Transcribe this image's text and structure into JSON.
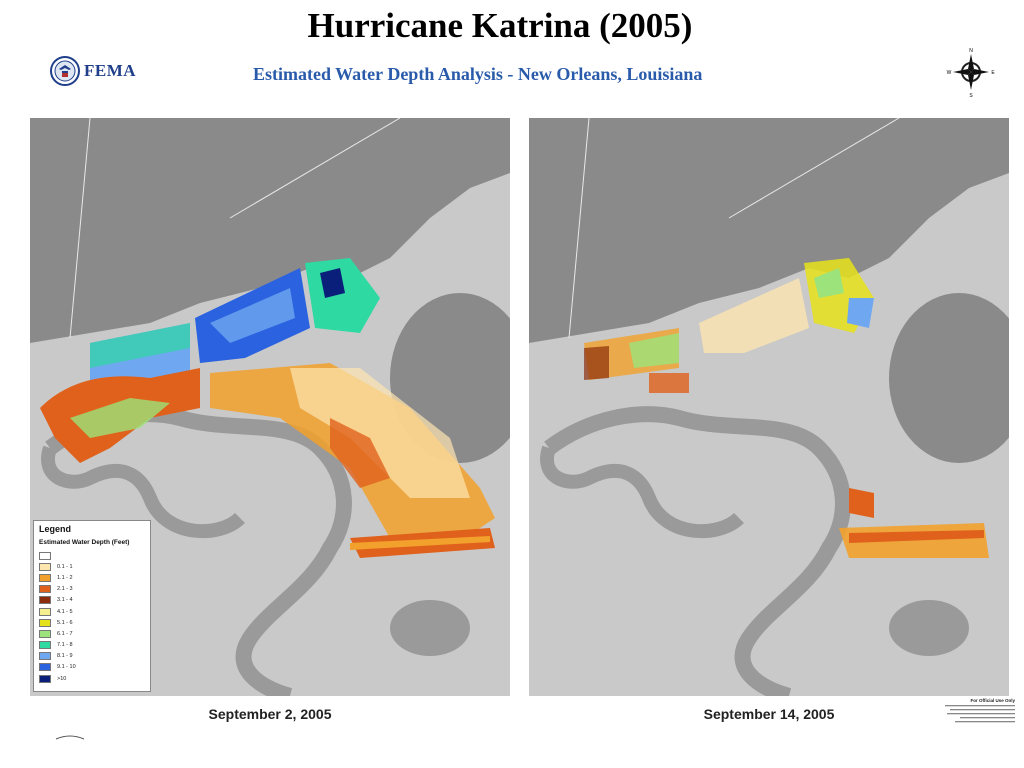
{
  "slide": {
    "title": "Hurricane Katrina (2005)"
  },
  "header": {
    "logo_text": "FEMA",
    "analysis_title": "Estimated Water Depth Analysis - New Orleans, Louisiana",
    "compass": {
      "n": "N",
      "s": "S",
      "e": "E",
      "w": "W"
    }
  },
  "maps": [
    {
      "caption": "September 2, 2005"
    },
    {
      "caption": "September 14, 2005"
    }
  ],
  "legend": {
    "title": "Legend",
    "subtitle": "Estimated Water Depth (Feet)",
    "items": [
      {
        "label": "",
        "color": "#ffffff"
      },
      {
        "label": "0.1 - 1",
        "color": "#fde5b0"
      },
      {
        "label": "1.1 - 2",
        "color": "#f2a12c"
      },
      {
        "label": "2.1 - 3",
        "color": "#e0611b"
      },
      {
        "label": "3.1 - 4",
        "color": "#8b2d0c"
      },
      {
        "label": "4.1 - 5",
        "color": "#f5ee8c"
      },
      {
        "label": "5.1 - 6",
        "color": "#e6e21a"
      },
      {
        "label": "6.1 - 7",
        "color": "#9be37a"
      },
      {
        "label": "7.1 - 8",
        "color": "#2ed9a2"
      },
      {
        "label": "8.1 - 9",
        "color": "#6fa8f0"
      },
      {
        "label": "9.1 - 10",
        "color": "#2a62e0"
      },
      {
        "label": ">10",
        "color": "#0a1f7a"
      }
    ]
  },
  "footer": {
    "official_title": "For Official Use Only"
  },
  "colors": {
    "water": "#8a8a8a",
    "land_light": "#d6d6d6",
    "river": "#9a9a9a",
    "fema_blue": "#1f3f8a",
    "title_blue": "#2a5bab"
  }
}
